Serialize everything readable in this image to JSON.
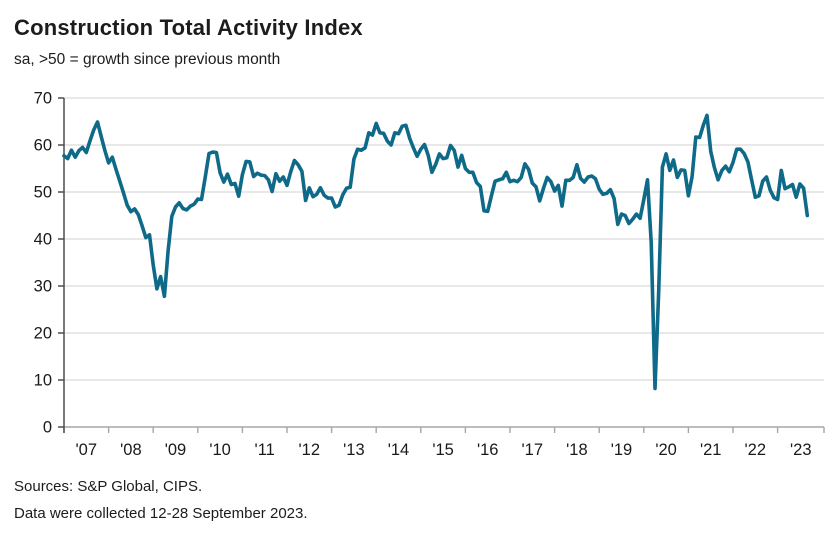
{
  "page": {
    "background": "#ffffff"
  },
  "header": {
    "title": "Construction Total Activity Index",
    "subtitle": "sa, >50 = growth since previous month"
  },
  "footer": {
    "sources": "Sources: S&P Global, CIPS.",
    "note": "Data were collected 12-28 September 2023."
  },
  "chart_data": {
    "type": "line",
    "title": "Construction Total Activity Index",
    "subtitle": "sa, >50 = growth since previous month",
    "grid": "horizontal",
    "legend": "none",
    "y_axis": {
      "min": 0,
      "max": 70,
      "ticks": [
        0,
        10,
        20,
        30,
        40,
        50,
        60,
        70
      ]
    },
    "x_axis": {
      "tick_labels": [
        "'07",
        "'08",
        "'09",
        "'10",
        "'11",
        "'12",
        "'13",
        "'14",
        "'15",
        "'16",
        "'17",
        "'18",
        "'19",
        "'20",
        "'21",
        "'22",
        "'23"
      ],
      "start": "2007-01",
      "end": "2023-09"
    },
    "series": [
      {
        "name": "Construction Total Activity Index",
        "frequency": "monthly",
        "start": "2007-01",
        "end": "2023-09",
        "values": [
          57.7,
          57.1,
          58.9,
          57.4,
          58.8,
          59.5,
          58.4,
          60.9,
          63.2,
          64.9,
          61.8,
          58.8,
          56.2,
          57.4,
          54.8,
          52.3,
          49.8,
          47.2,
          45.8,
          46.4,
          45.2,
          42.8,
          40.3,
          40.9,
          34.5,
          29.4,
          32.0,
          27.8,
          37.5,
          44.8,
          46.8,
          47.7,
          46.5,
          46.2,
          47.0,
          47.4,
          48.5,
          48.4,
          53.1,
          58.2,
          58.5,
          58.4,
          54.1,
          52.1,
          53.8,
          51.6,
          51.8,
          49.1,
          53.7,
          56.5,
          56.4,
          53.3,
          54.0,
          53.6,
          53.5,
          52.6,
          50.1,
          53.9,
          52.3,
          53.2,
          51.4,
          54.3,
          56.7,
          55.8,
          54.4,
          48.2,
          50.9,
          49.0,
          49.5,
          50.9,
          49.3,
          48.7,
          48.7,
          46.8,
          47.2,
          49.4,
          50.8,
          51.0,
          57.0,
          59.1,
          58.9,
          59.4,
          62.6,
          62.1,
          64.6,
          62.6,
          62.5,
          60.8,
          60.0,
          62.6,
          62.4,
          64.0,
          64.2,
          61.4,
          59.4,
          57.6,
          59.1,
          60.1,
          57.8,
          54.2,
          55.9,
          58.1,
          57.1,
          57.3,
          59.9,
          58.8,
          55.3,
          57.8,
          55.0,
          54.2,
          54.2,
          52.0,
          51.2,
          46.0,
          45.9,
          49.2,
          52.3,
          52.6,
          52.8,
          54.2,
          52.2,
          52.5,
          52.2,
          53.1,
          56.0,
          54.8,
          51.9,
          51.1,
          48.1,
          50.8,
          53.1,
          52.2,
          50.2,
          51.4,
          47.0,
          52.5,
          52.5,
          53.1,
          55.8,
          52.9,
          52.1,
          53.2,
          53.4,
          52.8,
          50.6,
          49.5,
          49.7,
          50.5,
          48.6,
          43.1,
          45.3,
          45.0,
          43.3,
          44.2,
          45.3,
          44.4,
          48.4,
          52.6,
          39.3,
          8.2,
          28.9,
          55.3,
          58.1,
          54.6,
          56.8,
          53.1,
          54.7,
          54.6,
          49.2,
          53.3,
          61.7,
          61.6,
          64.2,
          66.3,
          58.7,
          55.2,
          52.6,
          54.6,
          55.5,
          54.3,
          56.3,
          59.1,
          59.1,
          58.2,
          56.4,
          52.6,
          48.9,
          49.2,
          52.3,
          53.2,
          50.4,
          48.8,
          48.4,
          54.6,
          50.7,
          51.1,
          51.6,
          48.9,
          51.7,
          50.8,
          45.0
        ]
      }
    ],
    "colors": {
      "line": "#0e6a88",
      "grid": "#d9d9d9",
      "x_axis": "#a6a6a6",
      "y_axis": "#4d4d4d",
      "text": "#1a1a1a"
    }
  }
}
